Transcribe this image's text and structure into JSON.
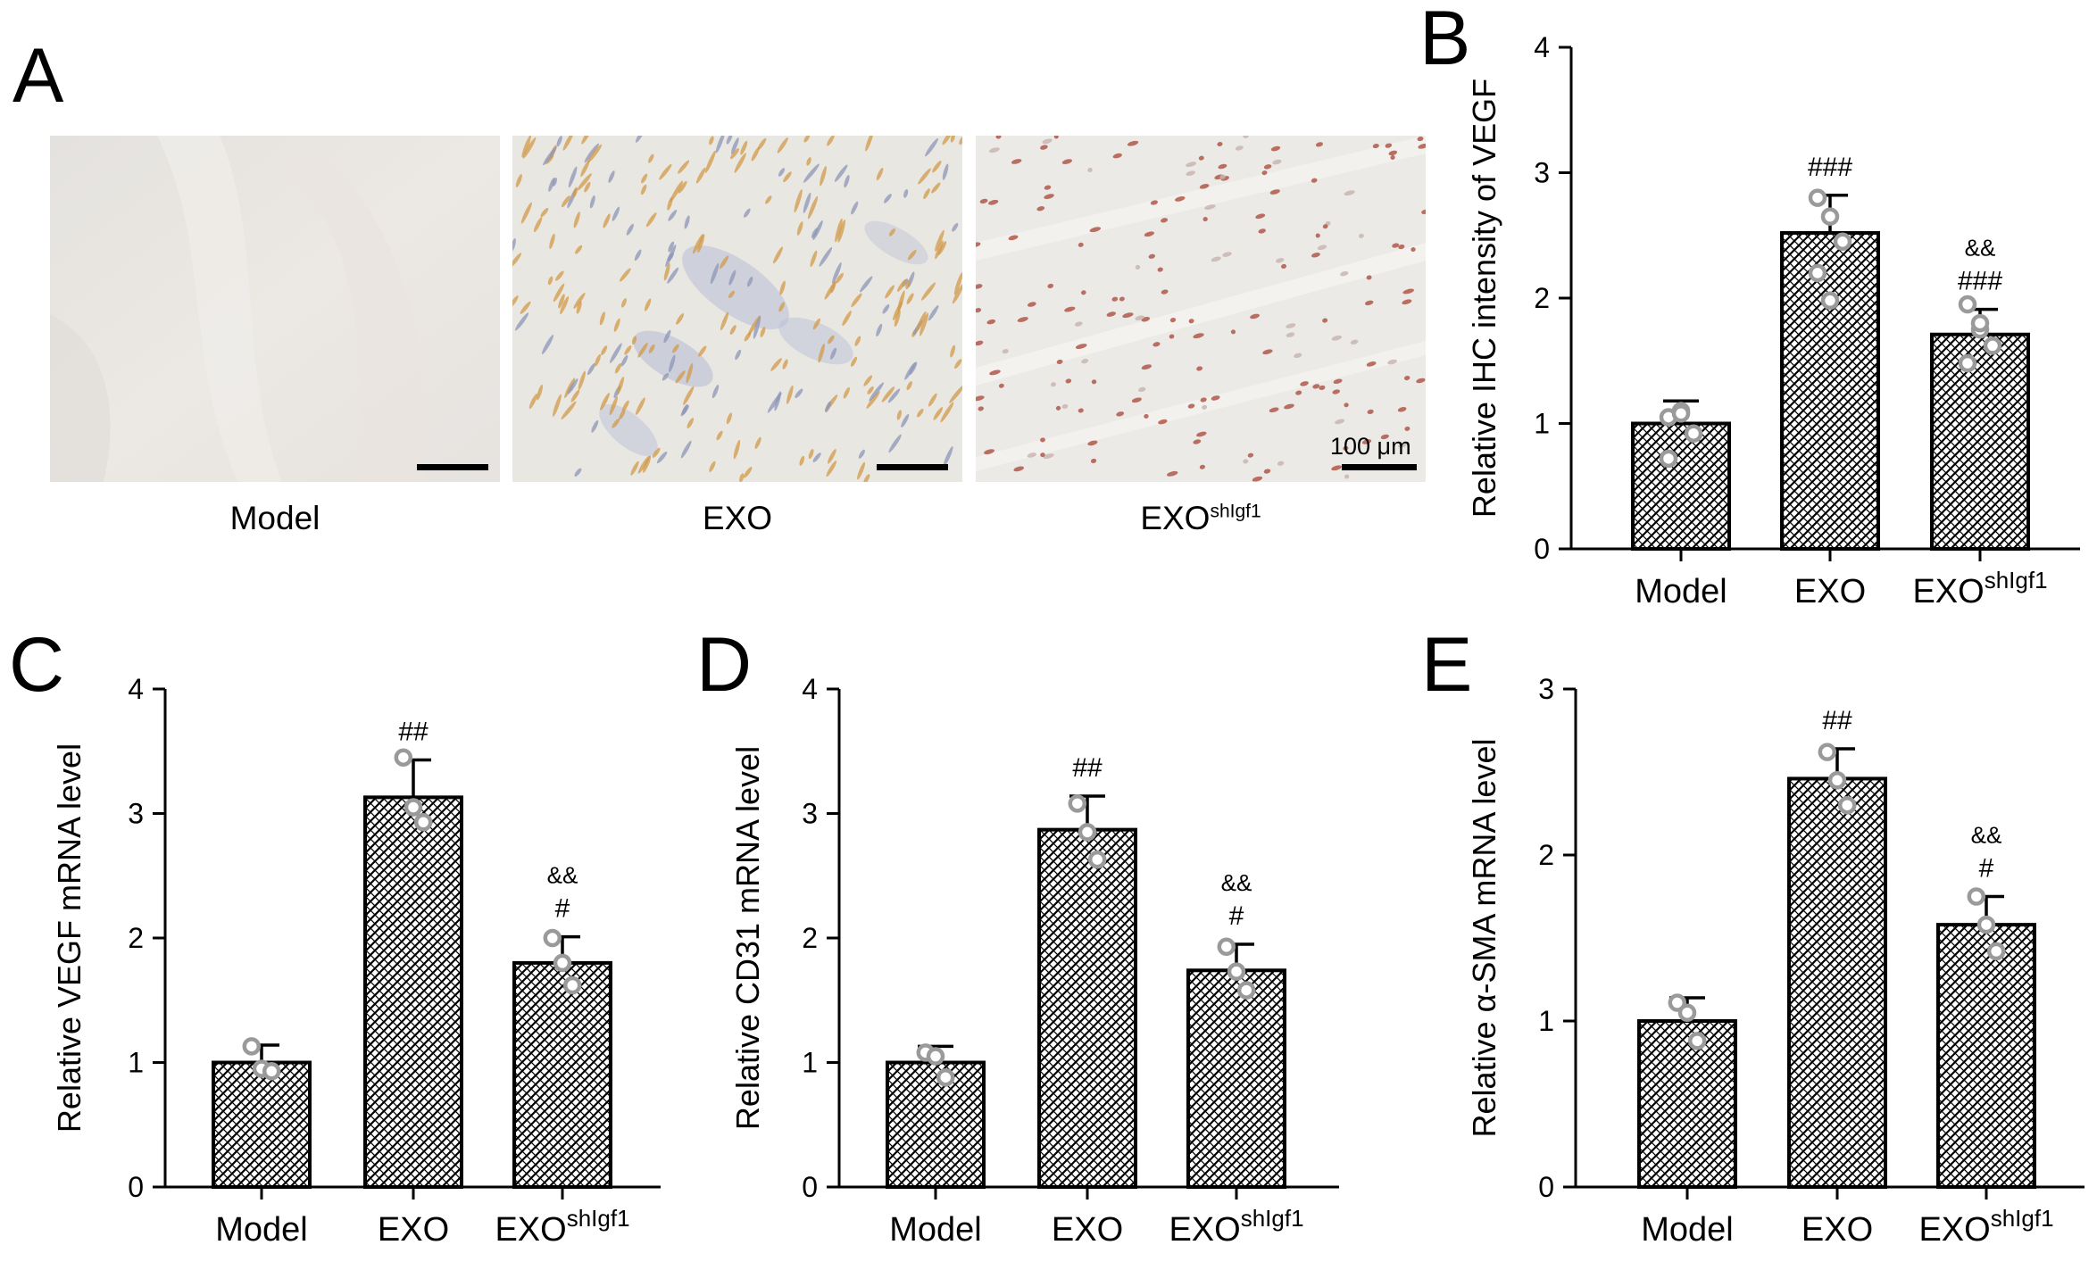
{
  "panels": {
    "A": "A",
    "B": "B",
    "C": "C",
    "D": "D",
    "E": "E"
  },
  "micrographs": [
    {
      "label": "Model",
      "sup": "",
      "stain": "none",
      "scale_text": ""
    },
    {
      "label": "EXO",
      "sup": "",
      "stain": "brown-blue",
      "scale_text": ""
    },
    {
      "label": "EXO",
      "sup": "shIgf1",
      "stain": "red",
      "scale_text": "100 μm"
    }
  ],
  "colors": {
    "bar_edge": "#000000",
    "hatch": "#000000",
    "dots": "#9a9a9a",
    "bg": "#ffffff"
  },
  "chart_data": [
    {
      "id": "B",
      "type": "bar",
      "categories": [
        "Model",
        "EXO",
        "EXO"
      ],
      "category_sup": [
        "",
        "",
        "shIgf1"
      ],
      "values": [
        1.0,
        2.52,
        1.71
      ],
      "errors": [
        0.18,
        0.3,
        0.2
      ],
      "points": [
        [
          1.05,
          1.1,
          0.92,
          0.72,
          1.08
        ],
        [
          2.8,
          2.65,
          2.45,
          2.2,
          1.98
        ],
        [
          1.95,
          1.75,
          1.62,
          1.48,
          1.8
        ]
      ],
      "annotations": [
        [],
        [
          "###"
        ],
        [
          "&&",
          "###"
        ]
      ],
      "ylabel": "Relative IHC intensity of VEGF",
      "xlabel": "",
      "ylim": [
        0,
        4
      ],
      "yticks": [
        "0",
        "1",
        "2",
        "3",
        "4"
      ]
    },
    {
      "id": "C",
      "type": "bar",
      "categories": [
        "Model",
        "EXO",
        "EXO"
      ],
      "category_sup": [
        "",
        "",
        "shIgf1"
      ],
      "values": [
        1.0,
        3.13,
        1.8
      ],
      "errors": [
        0.14,
        0.3,
        0.21
      ],
      "points": [
        [
          1.13,
          0.95,
          0.93
        ],
        [
          3.45,
          3.05,
          2.93
        ],
        [
          2.0,
          1.8,
          1.62
        ]
      ],
      "annotations": [
        [],
        [
          "##"
        ],
        [
          "&&",
          "#"
        ]
      ],
      "ylabel": "Relative VEGF mRNA level",
      "xlabel": "",
      "ylim": [
        0,
        4
      ],
      "yticks": [
        "0",
        "1",
        "2",
        "3",
        "4"
      ]
    },
    {
      "id": "D",
      "type": "bar",
      "categories": [
        "Model",
        "EXO",
        "EXO"
      ],
      "category_sup": [
        "",
        "",
        "shIgf1"
      ],
      "values": [
        1.0,
        2.87,
        1.74
      ],
      "errors": [
        0.13,
        0.27,
        0.21
      ],
      "points": [
        [
          1.08,
          1.05,
          0.88
        ],
        [
          3.08,
          2.85,
          2.63
        ],
        [
          1.93,
          1.73,
          1.58
        ]
      ],
      "annotations": [
        [],
        [
          "##"
        ],
        [
          "&&",
          "#"
        ]
      ],
      "ylabel": "Relative CD31 mRNA level",
      "xlabel": "",
      "ylim": [
        0,
        4
      ],
      "yticks": [
        "0",
        "1",
        "2",
        "3",
        "4"
      ]
    },
    {
      "id": "E",
      "type": "bar",
      "categories": [
        "Model",
        "EXO",
        "EXO"
      ],
      "category_sup": [
        "",
        "",
        "shIgf1"
      ],
      "values": [
        1.0,
        2.46,
        1.58
      ],
      "errors": [
        0.14,
        0.18,
        0.17
      ],
      "points": [
        [
          1.11,
          1.05,
          0.88
        ],
        [
          2.62,
          2.45,
          2.3
        ],
        [
          1.75,
          1.58,
          1.42
        ]
      ],
      "annotations": [
        [],
        [
          "##"
        ],
        [
          "&&",
          "#"
        ]
      ],
      "ylabel": "Relative α-SMA mRNA level",
      "xlabel": "",
      "ylim": [
        0,
        3
      ],
      "yticks": [
        "0",
        "1",
        "2",
        "3"
      ]
    }
  ]
}
